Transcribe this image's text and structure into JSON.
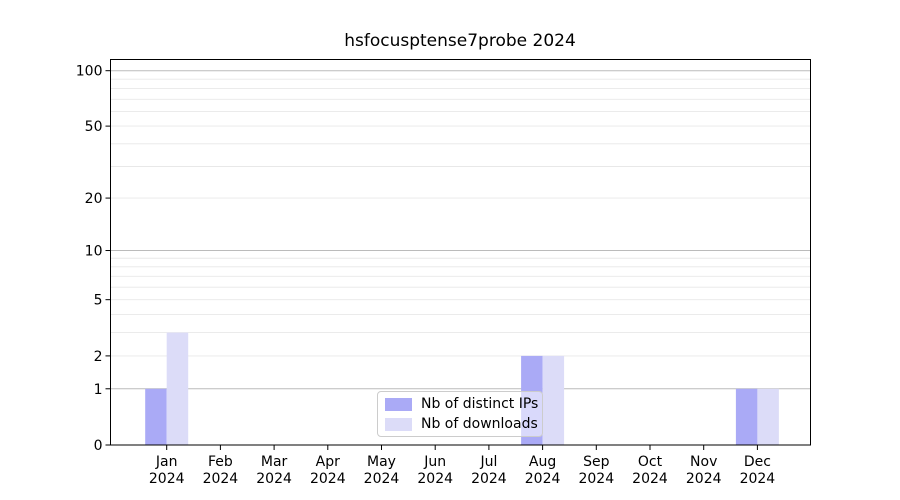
{
  "chart_data": {
    "type": "bar",
    "title": "hsfocusptense7probe 2024",
    "categories": [
      "Jan",
      "Feb",
      "Mar",
      "Apr",
      "May",
      "Jun",
      "Jul",
      "Aug",
      "Sep",
      "Oct",
      "Nov",
      "Dec"
    ],
    "year_label": "2024",
    "series": [
      {
        "name": "Nb of distinct IPs",
        "color": "#aaaaf6",
        "values": [
          1,
          0,
          0,
          0,
          0,
          0,
          0,
          2,
          0,
          0,
          0,
          1
        ]
      },
      {
        "name": "Nb of downloads",
        "color": "#dcdcf8",
        "values": [
          3,
          0,
          0,
          0,
          0,
          0,
          0,
          2,
          0,
          0,
          0,
          1
        ]
      }
    ],
    "yticks": [
      0,
      1,
      2,
      5,
      10,
      20,
      50,
      100
    ],
    "ylim": [
      0,
      115
    ],
    "yscale": "log10(1+x)",
    "xlabel": "",
    "ylabel": "",
    "grid": {
      "major_gridline_color": "#bbbbbb",
      "minor_gridline_color": "#e8e8e8"
    },
    "legend": {
      "position": "lower center",
      "border_color": "#cccccc"
    }
  }
}
